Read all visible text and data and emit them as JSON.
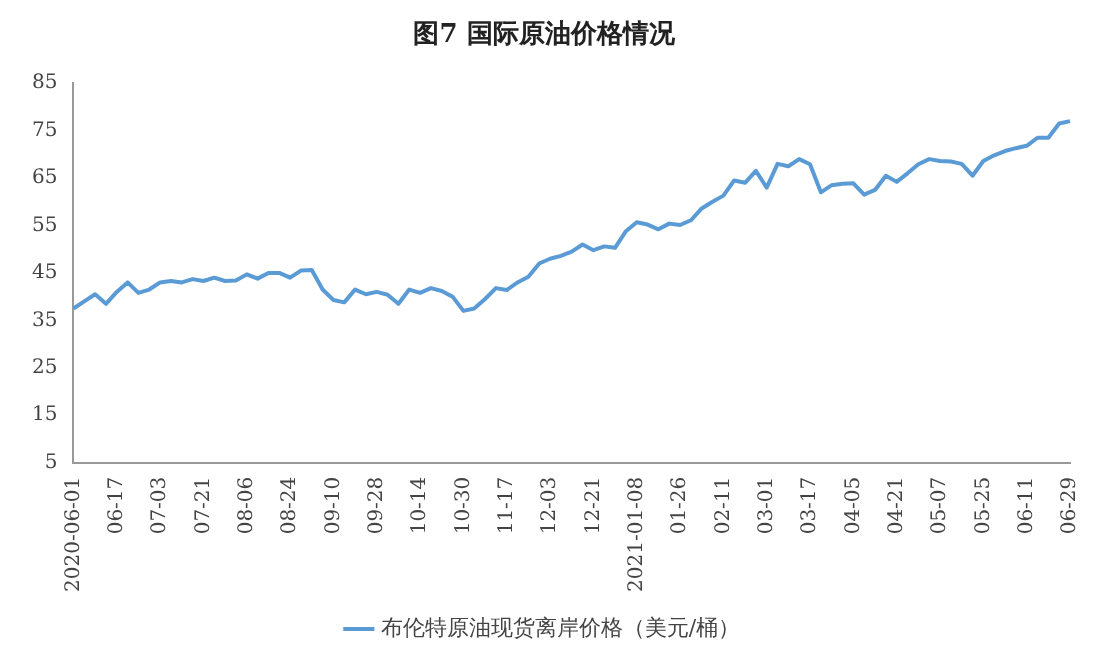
{
  "chart_data": {
    "type": "line",
    "title": "图7 国际原油价格情况",
    "categories": [
      "2020-06-01",
      null,
      null,
      null,
      "06-17",
      null,
      null,
      null,
      "07-03",
      null,
      null,
      null,
      "07-21",
      null,
      null,
      null,
      "08-06",
      null,
      null,
      null,
      "08-24",
      null,
      null,
      null,
      "09-10",
      null,
      null,
      null,
      "09-28",
      null,
      null,
      null,
      "10-14",
      null,
      null,
      null,
      "10-30",
      null,
      null,
      null,
      "11-17",
      null,
      null,
      null,
      "12-03",
      null,
      null,
      null,
      "12-21",
      null,
      null,
      null,
      "2021-01-08",
      null,
      null,
      null,
      "01-26",
      null,
      null,
      null,
      "02-11",
      null,
      null,
      null,
      "03-01",
      null,
      null,
      null,
      "03-17",
      null,
      null,
      null,
      "04-05",
      null,
      null,
      null,
      "04-21",
      null,
      null,
      null,
      "05-07",
      null,
      null,
      null,
      "05-25",
      null,
      null,
      null,
      "06-11",
      null,
      null,
      null,
      "06-29"
    ],
    "series": [
      {
        "name": "布伦特原油现货离岸价格（美元/桶）",
        "color": "#5b9bd5",
        "values": [
          37.5,
          39,
          40.5,
          38.5,
          41,
          43,
          40.8,
          41.5,
          43,
          43.3,
          43,
          43.7,
          43.3,
          44,
          43.3,
          43.4,
          44.7,
          43.8,
          45,
          45,
          44,
          45.5,
          45.6,
          41.5,
          39.3,
          38.8,
          41.5,
          40.5,
          41,
          40.4,
          38.5,
          41.5,
          40.8,
          41.8,
          41.2,
          40,
          37,
          37.5,
          39.5,
          41.8,
          41.4,
          43,
          44.2,
          47,
          48,
          48.6,
          49.5,
          51,
          49.8,
          50.6,
          50.3,
          53.8,
          55.7,
          55.2,
          54.2,
          55.4,
          55.1,
          56.1,
          58.6,
          60,
          61.3,
          64.5,
          64,
          66.5,
          63,
          68,
          67.5,
          69,
          67.9,
          62,
          63.5,
          63.8,
          63.9,
          61.5,
          62.5,
          65.5,
          64.2,
          66,
          67.9,
          69,
          68.6,
          68.5,
          68,
          65.5,
          68.6,
          69.8,
          70.7,
          71.3,
          71.8,
          73.5,
          73.5,
          76.5,
          77
        ]
      }
    ],
    "ylim": [
      5,
      85
    ],
    "yticks": [
      5,
      15,
      25,
      35,
      45,
      55,
      65,
      75,
      85
    ],
    "grid": false,
    "legend": "bottom",
    "marker": "none",
    "line_style": "solid"
  }
}
